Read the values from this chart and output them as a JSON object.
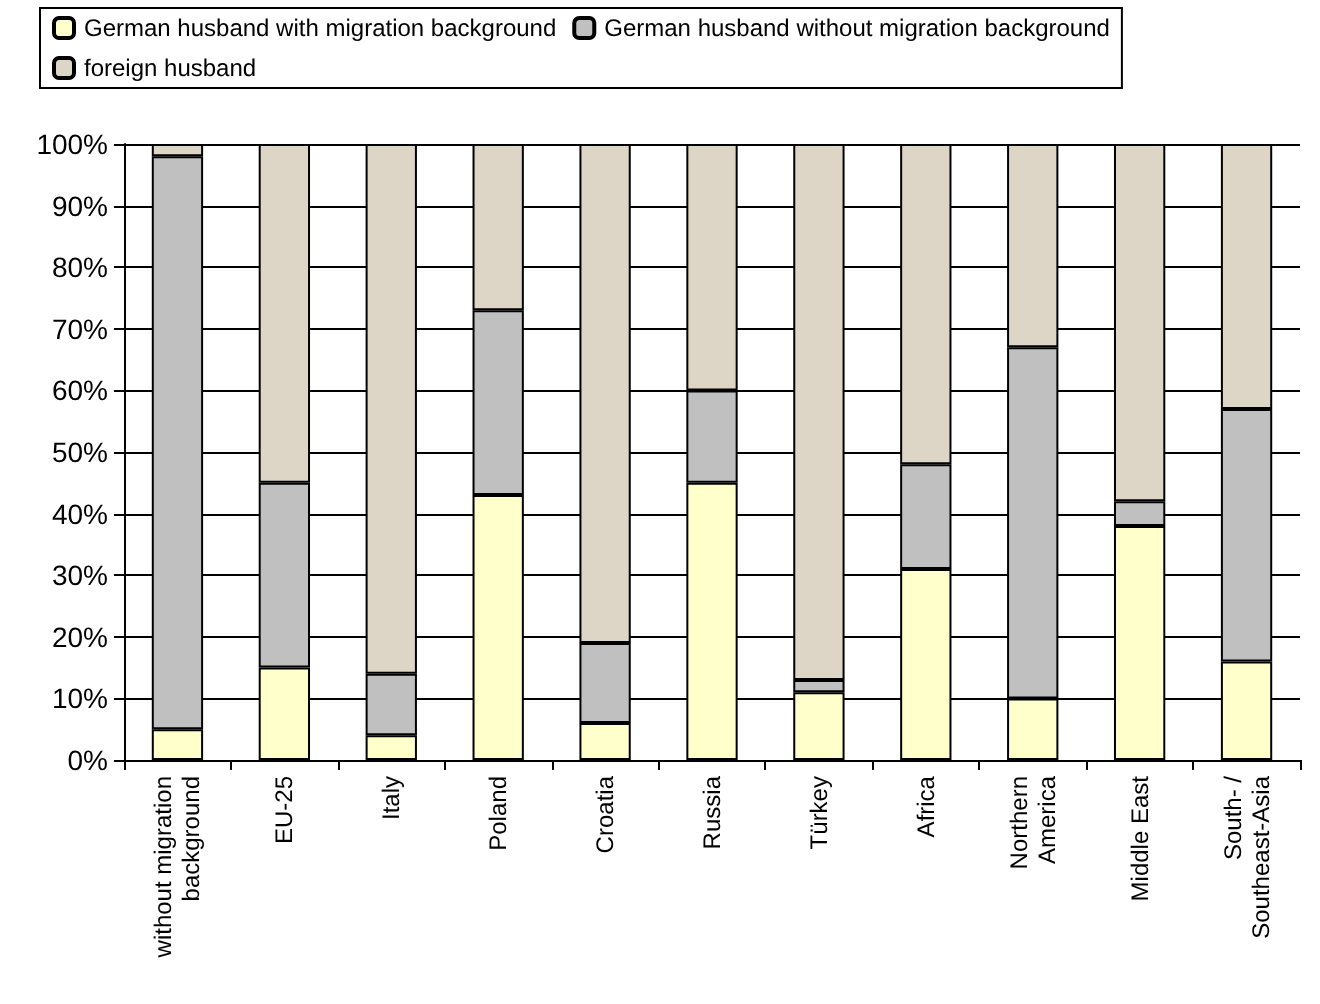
{
  "chart_data": {
    "type": "bar",
    "stacked": true,
    "categories": [
      "without migration\nbackground",
      "EU-25",
      "Italy",
      "Poland",
      "Croatia",
      "Russia",
      "Türkey",
      "Africa",
      "Northern\nAmerica",
      "Middle East",
      "South- /\nSoutheast-Asia"
    ],
    "series": [
      {
        "name": "German husband with migration background",
        "color": "#ffffcc",
        "values": [
          5,
          15,
          4,
          43,
          6,
          45,
          11,
          31,
          10,
          38,
          16
        ]
      },
      {
        "name": "German husband without migration background",
        "color": "#c0c0c0",
        "values": [
          93,
          30,
          10,
          30,
          13,
          15,
          2,
          17,
          57,
          4,
          41
        ]
      },
      {
        "name": "foreign husband",
        "color": "#ddd5c5",
        "values": [
          2,
          55,
          86,
          27,
          81,
          40,
          87,
          52,
          33,
          58,
          43
        ]
      }
    ],
    "ylim": [
      0,
      100
    ],
    "yticks": [
      {
        "value": 0,
        "label": "0%"
      },
      {
        "value": 10,
        "label": "10%"
      },
      {
        "value": 20,
        "label": "20%"
      },
      {
        "value": 30,
        "label": "30%"
      },
      {
        "value": 40,
        "label": "40%"
      },
      {
        "value": 50,
        "label": "50%"
      },
      {
        "value": 60,
        "label": "60%"
      },
      {
        "value": 70,
        "label": "70%"
      },
      {
        "value": 80,
        "label": "80%"
      },
      {
        "value": 90,
        "label": "90%"
      },
      {
        "value": 100,
        "label": "100%"
      }
    ],
    "grid": "y",
    "legend": "top"
  }
}
